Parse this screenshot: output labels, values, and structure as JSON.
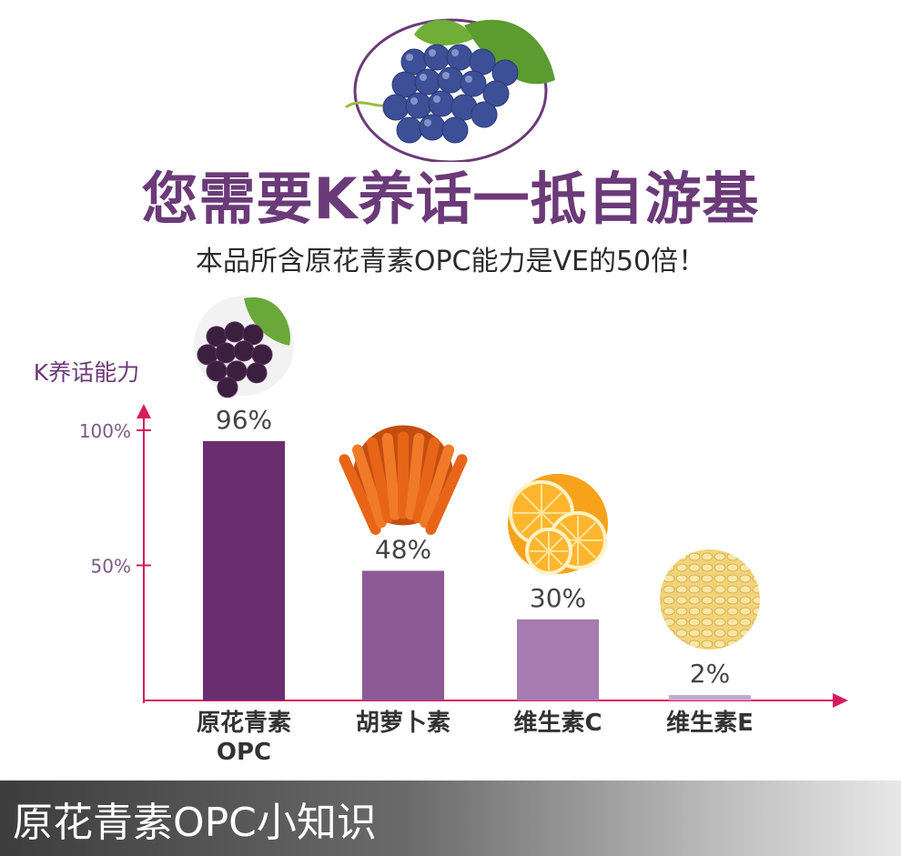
{
  "header": {
    "title": "您需要K养话一抵自游基",
    "subtitle": "本品所含原花青素OPC能力是VE的50倍！"
  },
  "footer": {
    "title": "原花青素OPC小知识"
  },
  "colors": {
    "accent_purple": "#6b3a78",
    "axis_pink": "#d81b60",
    "bar_1": "#6a2e6e",
    "bar_2": "#8d5a95",
    "bar_3": "#a57bb0",
    "bar_4": "#c7a8cf"
  },
  "chart_data": {
    "type": "bar",
    "ylabel": "K养话能力",
    "yticks": [
      "100%",
      "50%"
    ],
    "ytick_values": [
      100,
      50
    ],
    "categories": [
      "原花青素\nOPC",
      "胡萝卜素",
      "维生素C",
      "维生素E"
    ],
    "values": [
      96,
      48,
      30,
      2
    ],
    "value_labels": [
      "96%",
      "48%",
      "30%",
      "2%"
    ],
    "bar_images": [
      "grapes",
      "carrots",
      "orange-slices",
      "vitamin-e-capsules"
    ],
    "ylim": [
      0,
      100
    ],
    "grid": false,
    "legend": "none"
  }
}
